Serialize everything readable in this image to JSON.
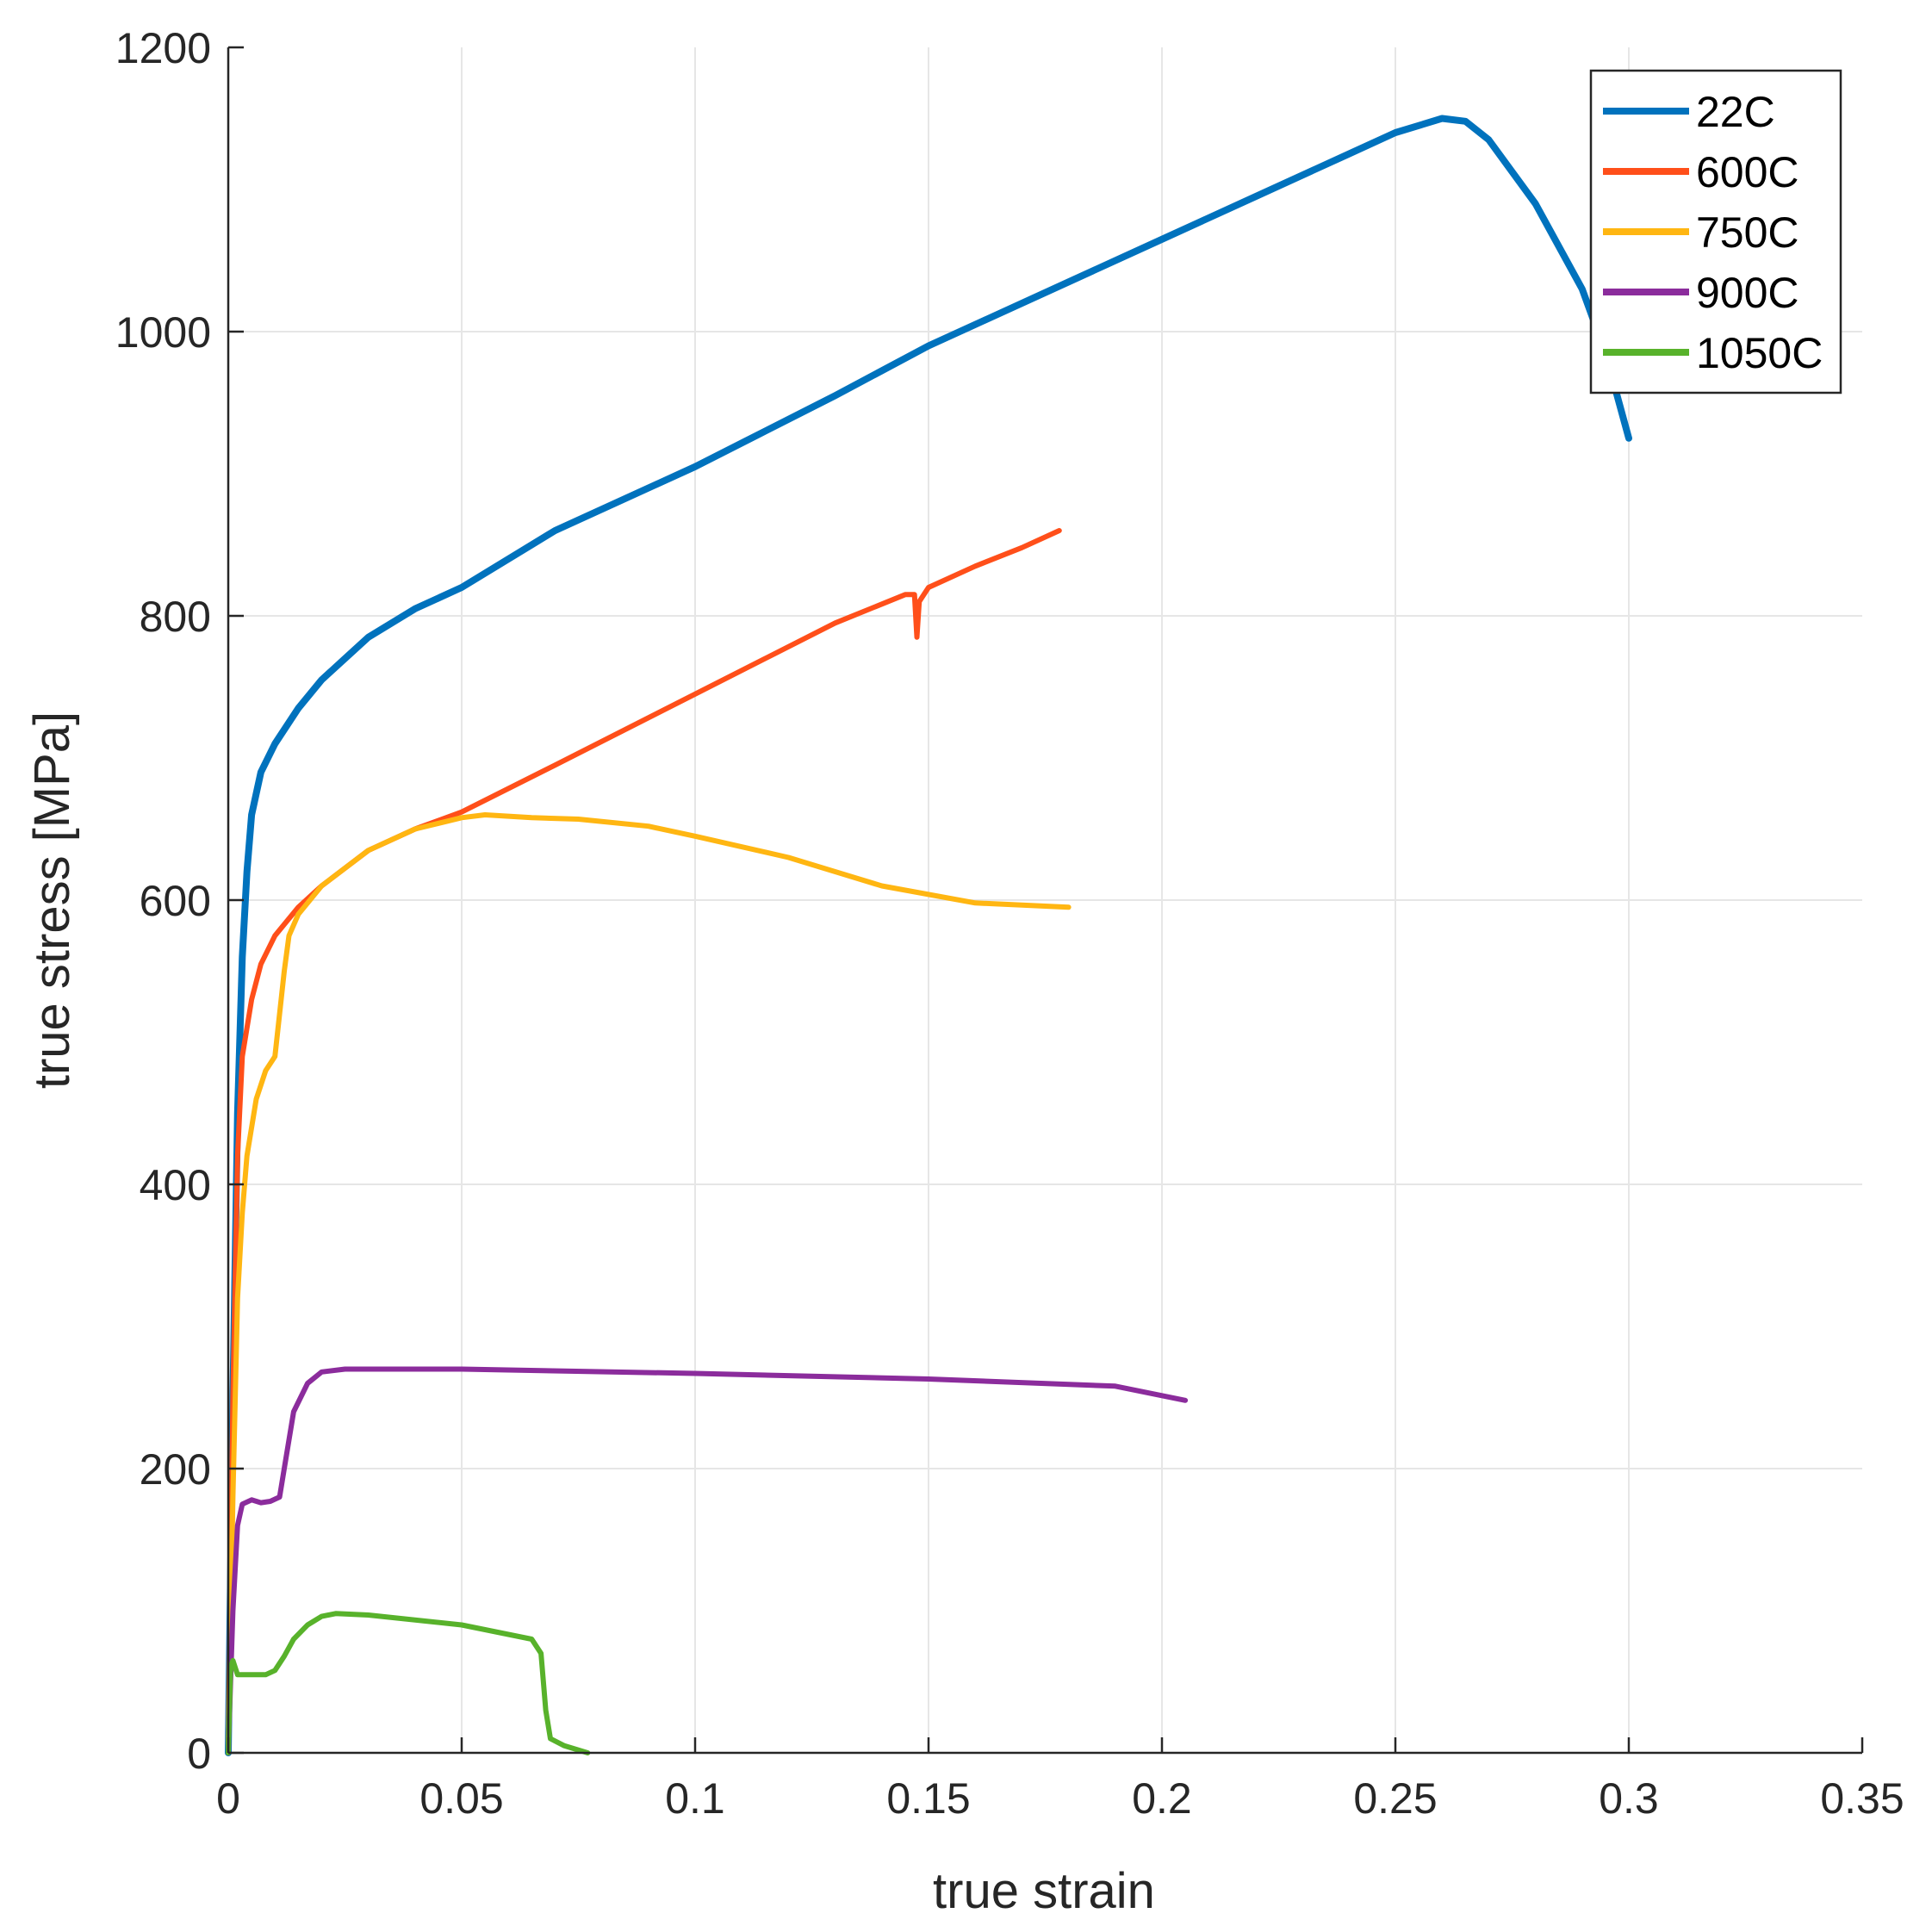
{
  "chart_data": {
    "type": "line",
    "title": "",
    "xlabel": "true strain",
    "ylabel": "true stress [MPa]",
    "xlim": [
      0,
      0.35
    ],
    "ylim": [
      0,
      1200
    ],
    "xticks": [
      0,
      0.05,
      0.1,
      0.15,
      0.2,
      0.25,
      0.3,
      0.35
    ],
    "xtick_labels": [
      "0",
      "0.05",
      "0.1",
      "0.15",
      "0.2",
      "0.25",
      "0.3",
      "0.35"
    ],
    "yticks": [
      0,
      200,
      400,
      600,
      800,
      1000,
      1200
    ],
    "ytick_labels": [
      "0",
      "200",
      "400",
      "600",
      "800",
      "1000",
      "1200"
    ],
    "grid": true,
    "legend_position": "top-right",
    "colors": {
      "axis": "#262626",
      "grid": "#e6e6e6",
      "s22": "#0072bd",
      "s600": "#ff4f1a",
      "s750": "#ffb612",
      "s900": "#8b2c9c",
      "s1050": "#58b22b"
    },
    "series": [
      {
        "name": "22C",
        "color_key": "s22",
        "x": [
          0,
          0.001,
          0.002,
          0.003,
          0.004,
          0.005,
          0.007,
          0.01,
          0.015,
          0.02,
          0.03,
          0.04,
          0.05,
          0.07,
          0.1,
          0.13,
          0.15,
          0.18,
          0.2,
          0.22,
          0.24,
          0.25,
          0.26,
          0.265,
          0.27,
          0.28,
          0.29,
          0.295,
          0.3
        ],
        "y": [
          0,
          250,
          450,
          560,
          620,
          660,
          690,
          710,
          735,
          755,
          785,
          805,
          820,
          860,
          905,
          955,
          990,
          1035,
          1065,
          1095,
          1125,
          1140,
          1150,
          1148,
          1135,
          1090,
          1030,
          985,
          925
        ]
      },
      {
        "name": "600C",
        "color_key": "s600",
        "x": [
          0,
          0.001,
          0.002,
          0.003,
          0.005,
          0.007,
          0.01,
          0.015,
          0.02,
          0.03,
          0.04,
          0.05,
          0.07,
          0.1,
          0.13,
          0.145,
          0.147,
          0.1475,
          0.148,
          0.15,
          0.16,
          0.17,
          0.178
        ],
        "y": [
          0,
          250,
          420,
          490,
          530,
          555,
          575,
          595,
          610,
          635,
          650,
          662,
          695,
          745,
          795,
          815,
          815,
          785,
          810,
          820,
          835,
          848,
          860
        ]
      },
      {
        "name": "750C",
        "color_key": "s750",
        "x": [
          0,
          0.001,
          0.002,
          0.003,
          0.004,
          0.006,
          0.008,
          0.01,
          0.012,
          0.013,
          0.015,
          0.02,
          0.03,
          0.04,
          0.05,
          0.055,
          0.065,
          0.075,
          0.09,
          0.1,
          0.12,
          0.14,
          0.16,
          0.18
        ],
        "y": [
          0,
          180,
          320,
          380,
          420,
          460,
          480,
          490,
          550,
          575,
          590,
          610,
          635,
          650,
          658,
          660,
          658,
          657,
          652,
          645,
          630,
          610,
          598,
          595
        ]
      },
      {
        "name": "900C",
        "color_key": "s900",
        "x": [
          0,
          0.001,
          0.002,
          0.003,
          0.005,
          0.007,
          0.009,
          0.011,
          0.012,
          0.014,
          0.017,
          0.02,
          0.025,
          0.05,
          0.1,
          0.15,
          0.19,
          0.205
        ],
        "y": [
          0,
          100,
          160,
          175,
          178,
          176,
          177,
          180,
          200,
          240,
          260,
          268,
          270,
          270,
          267,
          263,
          258,
          248
        ]
      },
      {
        "name": "1050C",
        "color_key": "s1050",
        "x": [
          0,
          0.0005,
          0.001,
          0.002,
          0.005,
          0.008,
          0.01,
          0.012,
          0.014,
          0.017,
          0.02,
          0.023,
          0.03,
          0.05,
          0.065,
          0.067,
          0.068,
          0.069,
          0.072,
          0.077
        ],
        "y": [
          0,
          60,
          65,
          55,
          55,
          55,
          58,
          68,
          80,
          90,
          96,
          98,
          97,
          90,
          80,
          70,
          30,
          10,
          5,
          0
        ]
      }
    ]
  }
}
